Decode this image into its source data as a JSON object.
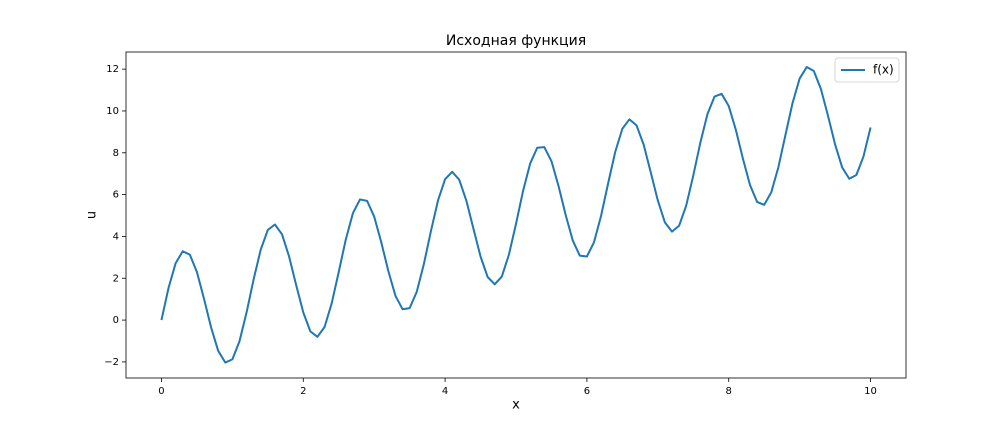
{
  "chart_data": {
    "type": "line",
    "title": "Исходная функция",
    "xlabel": "x",
    "ylabel": "u",
    "x": [
      0,
      0.1,
      0.2,
      0.3,
      0.4,
      0.5,
      0.6,
      0.7,
      0.8,
      0.9,
      1,
      1.1,
      1.2,
      1.3,
      1.4,
      1.5,
      1.6,
      1.7,
      1.8,
      1.9,
      2,
      2.1,
      2.2,
      2.3,
      2.4,
      2.5,
      2.6,
      2.7,
      2.8,
      2.9,
      3,
      3.1,
      3.2,
      3.3,
      3.4,
      3.5,
      3.6,
      3.7,
      3.8,
      3.9,
      4,
      4.1,
      4.2,
      4.3,
      4.4,
      4.5,
      4.6,
      4.7,
      4.8,
      4.9,
      5,
      5.1,
      5.2,
      5.3,
      5.4,
      5.5,
      5.6,
      5.7,
      5.8,
      5.9,
      6,
      6.1,
      6.2,
      6.3,
      6.4,
      6.5,
      6.6,
      6.7,
      6.8,
      6.9,
      7,
      7.1,
      7.2,
      7.3,
      7.4,
      7.5,
      7.6,
      7.7,
      7.8,
      7.9,
      8,
      8.1,
      8.2,
      8.3,
      8.4,
      8.5,
      8.6,
      8.7,
      8.8,
      8.9,
      9,
      9.1,
      9.2,
      9.3,
      9.4,
      9.5,
      9.6,
      9.7,
      9.8,
      9.9,
      10
    ],
    "series": [
      {
        "name": "f(x)",
        "color": "#1f77b4",
        "values": [
          0,
          1.54,
          2.72,
          3.29,
          3.13,
          2.3,
          1.02,
          -0.35,
          -1.47,
          -2.03,
          -1.88,
          -1.02,
          0.36,
          1.95,
          3.37,
          4.31,
          4.57,
          4.1,
          3.04,
          1.67,
          0.37,
          -0.54,
          -0.8,
          -0.33,
          0.79,
          2.3,
          3.86,
          5.11,
          5.77,
          5.7,
          4.95,
          3.72,
          2.34,
          1.16,
          0.52,
          0.57,
          1.35,
          2.67,
          4.25,
          5.72,
          6.74,
          7.09,
          6.71,
          5.71,
          4.37,
          3.04,
          2.06,
          1.71,
          2.08,
          3.13,
          4.6,
          6.18,
          7.49,
          8.24,
          8.27,
          7.6,
          6.41,
          5.03,
          3.81,
          3.08,
          3.04,
          3.72,
          4.99,
          6.55,
          8.05,
          9.15,
          9.6,
          9.31,
          8.39,
          7.07,
          5.72,
          4.67,
          4.23,
          4.51,
          5.47,
          6.91,
          8.49,
          9.85,
          10.69,
          10.82,
          10.24,
          9.1,
          7.72,
          6.46,
          5.65,
          5.51,
          6.11,
          7.31,
          8.85,
          10.38,
          11.55,
          12.1,
          11.91,
          11.05,
          9.77,
          8.4,
          7.3,
          6.76,
          6.94,
          7.82,
          9.21
        ]
      }
    ],
    "xlim": [
      -0.5,
      10.5
    ],
    "ylim": [
      -2.77,
      12.82
    ],
    "xticks": [
      0,
      2,
      4,
      6,
      8,
      10
    ],
    "yticks": [
      {
        "value": -2,
        "label": "−2"
      },
      0,
      2,
      4,
      6,
      8,
      10,
      12
    ],
    "legend": "upper right"
  }
}
